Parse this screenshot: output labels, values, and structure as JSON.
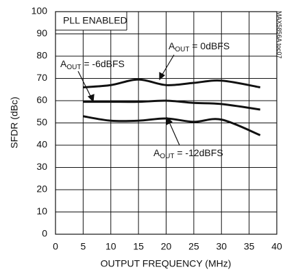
{
  "chart_data": {
    "type": "line",
    "note_box": "PLL ENABLED",
    "side_label": "MAX5856A toc07",
    "xlabel": "OUTPUT FREQUENCY (MHz)",
    "ylabel": "SFDR (dBc)",
    "xlim": [
      0,
      40
    ],
    "xticks": [
      0,
      5,
      10,
      15,
      20,
      25,
      30,
      35,
      40
    ],
    "ylim": [
      0,
      100
    ],
    "yticks": [
      0,
      10,
      20,
      30,
      40,
      50,
      60,
      70,
      80,
      90,
      100
    ],
    "grid": true,
    "series": [
      {
        "name": {
          "prefix": "A",
          "sub": "OUT",
          "rest": " = 0dBFS"
        },
        "color": "#111111",
        "x": [
          5,
          10,
          15,
          20,
          25,
          30,
          37
        ],
        "values": [
          66,
          67,
          69.5,
          67,
          68,
          69,
          66
        ]
      },
      {
        "name": {
          "prefix": "A",
          "sub": "OUT",
          "rest": " = -6dBFS"
        },
        "color": "#111111",
        "x": [
          5,
          10,
          15,
          20,
          25,
          30,
          37
        ],
        "values": [
          59.5,
          59.5,
          59.5,
          60,
          59,
          58.5,
          56
        ]
      },
      {
        "name": {
          "prefix": "A",
          "sub": "OUT",
          "rest": " = -12dBFS"
        },
        "color": "#111111",
        "x": [
          5,
          10,
          15,
          20,
          25,
          30,
          37
        ],
        "values": [
          53,
          51,
          51,
          52,
          50.5,
          51.5,
          44.5
        ]
      }
    ]
  }
}
